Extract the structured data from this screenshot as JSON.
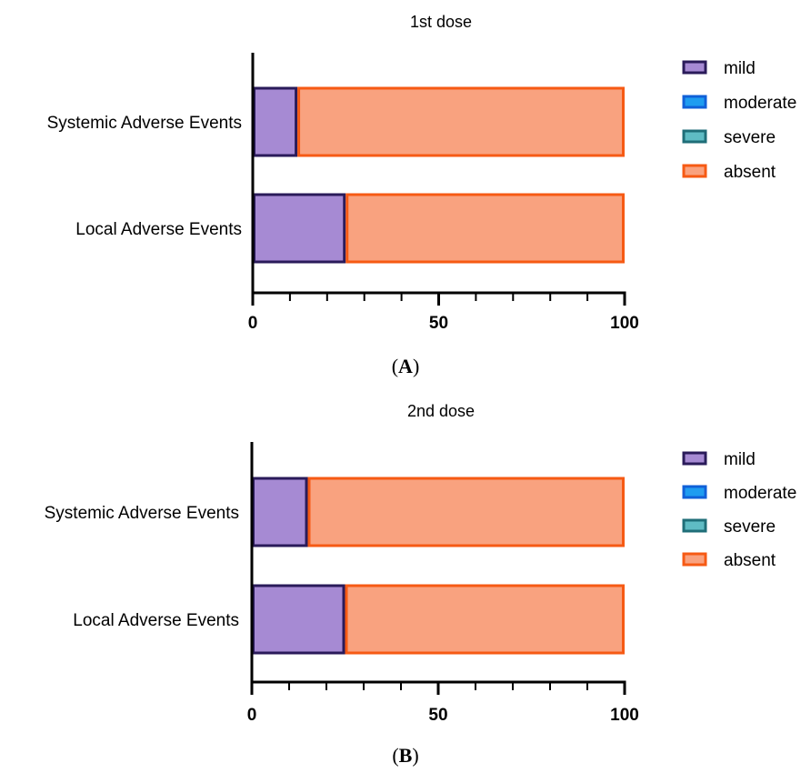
{
  "chart_data": [
    {
      "type": "bar",
      "orientation": "horizontal",
      "stacked": true,
      "title": "1st dose",
      "panel": "A",
      "categories": [
        "Systemic Adverse Events",
        "Local Adverse Events"
      ],
      "series": [
        {
          "name": "mild",
          "values": [
            12,
            25
          ]
        },
        {
          "name": "moderate",
          "values": [
            0,
            0
          ]
        },
        {
          "name": "severe",
          "values": [
            0,
            0
          ]
        },
        {
          "name": "absent",
          "values": [
            88,
            75
          ]
        }
      ],
      "xlim": [
        0,
        100
      ],
      "xticks": [
        "0",
        "50",
        "100"
      ],
      "xlabel": "",
      "ylabel": "",
      "grid": false,
      "legend": "right"
    },
    {
      "type": "bar",
      "orientation": "horizontal",
      "stacked": true,
      "title": "2nd dose",
      "panel": "B",
      "categories": [
        "Systemic Adverse Events",
        "Local Adverse Events"
      ],
      "series": [
        {
          "name": "mild",
          "values": [
            15,
            25
          ]
        },
        {
          "name": "moderate",
          "values": [
            0,
            0
          ]
        },
        {
          "name": "severe",
          "values": [
            0,
            0
          ]
        },
        {
          "name": "absent",
          "values": [
            85,
            75
          ]
        }
      ],
      "xlim": [
        0,
        100
      ],
      "xticks": [
        "0",
        "50",
        "100"
      ],
      "xlabel": "",
      "ylabel": "",
      "grid": false,
      "legend": "right"
    }
  ],
  "colors": {
    "mild": {
      "fill": "#a68ad3",
      "stroke": "#2a1b5a"
    },
    "moderate": {
      "fill": "#1e9cf0",
      "stroke": "#1060d8"
    },
    "severe": {
      "fill": "#5fbcc4",
      "stroke": "#1f6e78"
    },
    "absent": {
      "fill": "#f9a27f",
      "stroke": "#f65a14"
    }
  }
}
